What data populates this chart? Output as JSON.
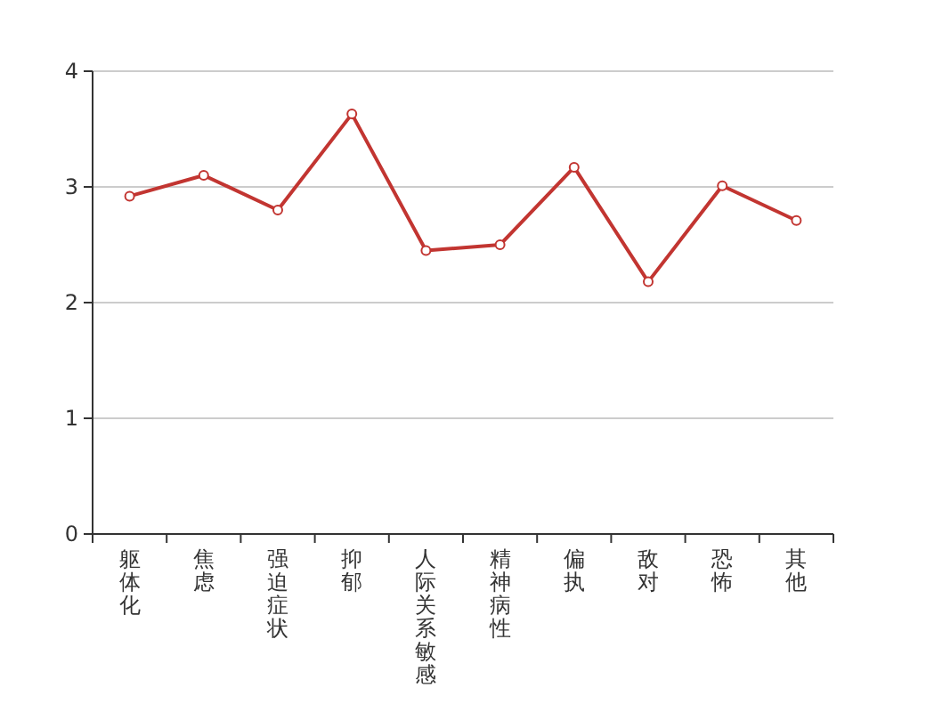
{
  "chart_data": {
    "type": "line",
    "categories": [
      "躯体化",
      "焦虑",
      "强迫症状",
      "抑郁",
      "人际关系敏感",
      "精神病性",
      "偏执",
      "敌对",
      "恐怖",
      "其他"
    ],
    "series": [
      {
        "color": "#c23531",
        "values": [
          2.92,
          3.1,
          2.8,
          3.63,
          2.45,
          2.5,
          3.17,
          2.18,
          3.01,
          2.71
        ]
      }
    ],
    "ylim": [
      0,
      4
    ],
    "yticks": [
      0,
      1,
      2,
      3,
      4
    ],
    "grid": "y",
    "marker": "circle",
    "line_style": "solid"
  }
}
